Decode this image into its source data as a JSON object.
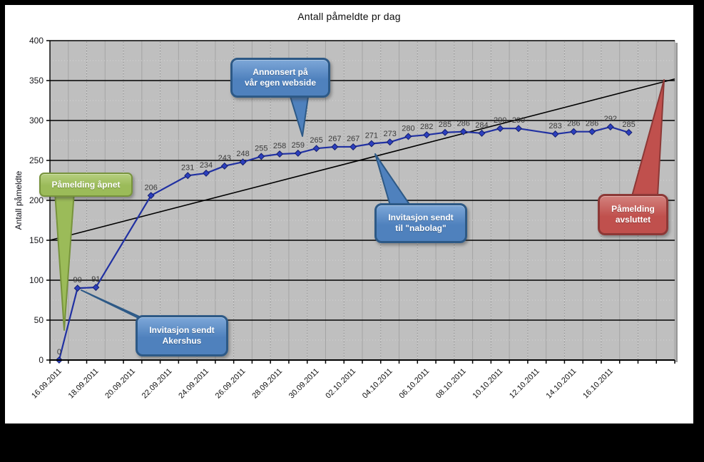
{
  "title": "Antall påmeldte pr dag",
  "colors": {
    "line": "#2030a2",
    "marker": "#2c3fbe",
    "marker_edge": "#141f6e",
    "trend": "#000000",
    "plot_bg": "#bfbfbf",
    "plot_border": "#8e8e8e",
    "grid_vertical": "#a4a4a4",
    "grid_vertical_dots": "#ececec",
    "grid_h_minor": "#d6d6d6",
    "grid_h_major": "#000000",
    "axis": "#000000",
    "data_label": "#3a3a3a",
    "tick_label": "#18181c"
  },
  "chart_data": {
    "type": "line",
    "title": "Antall påmeldte pr dag",
    "xlabel": "",
    "ylabel": "Antall påmeldte",
    "ylim": [
      0,
      400
    ],
    "ytick_step": 50,
    "grid": true,
    "legend": false,
    "num_days": 34,
    "x_tick_labels": [
      "16.09.2011",
      "18.09.2011",
      "20.09.2011",
      "22.09.2011",
      "24.09.2011",
      "26.09.2011",
      "28.09.2011",
      "30.09.2011",
      "02.10.2011",
      "04.10.2011",
      "06.10.2011",
      "08.10.2011",
      "10.10.2011",
      "12.10.2011",
      "14.10.2011",
      "16.10.2011"
    ],
    "points": [
      {
        "day": 0,
        "date": "16.09.2011",
        "value": 0
      },
      {
        "day": 1,
        "date": "17.09.2011",
        "value": 90
      },
      {
        "day": 2,
        "date": "18.09.2011",
        "value": 91
      },
      {
        "day": 5,
        "date": "21.09.2011",
        "value": 206
      },
      {
        "day": 7,
        "date": "23.09.2011",
        "value": 231
      },
      {
        "day": 8,
        "date": "24.09.2011",
        "value": 234
      },
      {
        "day": 9,
        "date": "25.09.2011",
        "value": 243
      },
      {
        "day": 10,
        "date": "26.09.2011",
        "value": 248
      },
      {
        "day": 11,
        "date": "27.09.2011",
        "value": 255
      },
      {
        "day": 12,
        "date": "28.09.2011",
        "value": 258
      },
      {
        "day": 13,
        "date": "29.09.2011",
        "value": 259
      },
      {
        "day": 14,
        "date": "30.09.2011",
        "value": 265
      },
      {
        "day": 15,
        "date": "01.10.2011",
        "value": 267
      },
      {
        "day": 16,
        "date": "02.10.2011",
        "value": 267
      },
      {
        "day": 17,
        "date": "03.10.2011",
        "value": 271
      },
      {
        "day": 18,
        "date": "04.10.2011",
        "value": 273
      },
      {
        "day": 19,
        "date": "05.10.2011",
        "value": 280
      },
      {
        "day": 20,
        "date": "06.10.2011",
        "value": 282
      },
      {
        "day": 21,
        "date": "07.10.2011",
        "value": 285
      },
      {
        "day": 22,
        "date": "08.10.2011",
        "value": 286
      },
      {
        "day": 23,
        "date": "09.10.2011",
        "value": 284
      },
      {
        "day": 24,
        "date": "10.10.2011",
        "value": 290
      },
      {
        "day": 25,
        "date": "11.10.2011",
        "value": 290
      },
      {
        "day": 27,
        "date": "13.10.2011",
        "value": 283
      },
      {
        "day": 28,
        "date": "14.10.2011",
        "value": 286
      },
      {
        "day": 29,
        "date": "15.10.2011",
        "value": 286
      },
      {
        "day": 30,
        "date": "16.10.2011",
        "value": 292
      },
      {
        "day": 31,
        "date": "17.10.2011",
        "value": 285
      }
    ],
    "trendline": {
      "start_value": 150,
      "end_value": 352
    }
  },
  "callouts": [
    {
      "id": "pamelding-apnet",
      "lines": [
        "Påmelding åpnet"
      ],
      "fill": "#9bbb59",
      "fill_light": "#b6cf7f",
      "border": "#77933c"
    },
    {
      "id": "invitasjon-akershus",
      "lines": [
        "Invitasjon sendt",
        "Akershus"
      ],
      "fill": "#4f81bd",
      "fill_light": "#7da7d8",
      "border": "#2d5986"
    },
    {
      "id": "annonsert-webside",
      "lines": [
        "Annonsert på",
        "vår egen webside"
      ],
      "fill": "#4f81bd",
      "fill_light": "#7da7d8",
      "border": "#2d5986"
    },
    {
      "id": "invitasjon-nabolag",
      "lines": [
        "Invitasjon sendt",
        "til \"nabolag\""
      ],
      "fill": "#4f81bd",
      "fill_light": "#7da7d8",
      "border": "#2d5986"
    },
    {
      "id": "pamelding-avsluttet",
      "lines": [
        "Påmelding",
        "avsluttet"
      ],
      "fill": "#c0504d",
      "fill_light": "#d3817d",
      "border": "#8c3836"
    }
  ]
}
